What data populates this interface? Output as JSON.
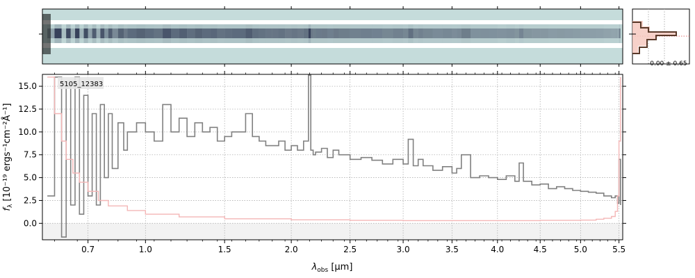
{
  "chart_data": [
    {
      "panel": "2d-spectrum",
      "type": "heatmap",
      "description_colors": {
        "background": "#c5dcdb",
        "trace": "#2b3550",
        "gap": "#ffffff"
      }
    },
    {
      "panel": "profile",
      "type": "line",
      "annotation": "-0.00 ± 0.65",
      "colors": {
        "profile": "#5a3a2a",
        "fill": "#f6c9bf"
      }
    },
    {
      "panel": "1d-spectrum",
      "type": "line",
      "id_label": "5105_12383",
      "xlabel_main": "λ",
      "xlabel_sub": "obs",
      "xlabel_unit": " [μm]",
      "ylabel": "f_λ [10⁻¹⁹ ergs⁻¹cm⁻²Å⁻¹]",
      "ylabel_text": "f",
      "ylabel_sub": "λ",
      "ylabel_unit": " [10⁻¹⁹ ergs⁻¹cm⁻²Å⁻¹]",
      "xlim": [
        0.5,
        5.55
      ],
      "ylim": [
        -1.8,
        16.3
      ],
      "xscale": "sqrt",
      "x_ticks": [
        0.7,
        1.0,
        1.5,
        2.0,
        2.5,
        3.0,
        3.5,
        4.0,
        4.5,
        5.0,
        5.5
      ],
      "x_tick_labels": [
        "0.7",
        "1.0",
        "1.5",
        "2.0",
        "2.5",
        "3.0",
        "3.5",
        "4.0",
        "4.5",
        "5.0",
        "5.5"
      ],
      "y_ticks": [
        0.0,
        2.5,
        5.0,
        7.5,
        10.0,
        12.5,
        15.0
      ],
      "y_tick_labels": [
        "0.0",
        "2.5",
        "5.0",
        "7.5",
        "10.0",
        "12.5",
        "15.0"
      ],
      "grid": true,
      "colors": {
        "flux": "#808080",
        "error": "#f4b6b6",
        "zero_band": "#f2f2f2"
      },
      "series": [
        {
          "role": "flux",
          "x": [
            0.52,
            0.55,
            0.58,
            0.6,
            0.62,
            0.64,
            0.66,
            0.68,
            0.7,
            0.72,
            0.74,
            0.76,
            0.78,
            0.8,
            0.82,
            0.85,
            0.88,
            0.9,
            0.95,
            1.0,
            1.05,
            1.1,
            1.15,
            1.2,
            1.25,
            1.3,
            1.35,
            1.4,
            1.45,
            1.5,
            1.55,
            1.6,
            1.65,
            1.7,
            1.75,
            1.8,
            1.85,
            1.9,
            1.95,
            2.0,
            2.05,
            2.1,
            2.14,
            2.16,
            2.18,
            2.2,
            2.25,
            2.3,
            2.35,
            2.4,
            2.5,
            2.6,
            2.7,
            2.8,
            2.9,
            3.0,
            3.05,
            3.1,
            3.15,
            3.2,
            3.3,
            3.4,
            3.5,
            3.55,
            3.6,
            3.7,
            3.8,
            3.9,
            4.0,
            4.1,
            4.2,
            4.25,
            4.3,
            4.4,
            4.5,
            4.6,
            4.7,
            4.8,
            4.9,
            5.0,
            5.1,
            5.2,
            5.3,
            5.4,
            5.45,
            5.48,
            5.5,
            5.52
          ],
          "y": [
            3.0,
            16.0,
            -1.5,
            15.0,
            2.0,
            16.0,
            1.0,
            14.0,
            3.0,
            12.0,
            2.0,
            13.0,
            5.0,
            12.0,
            6.0,
            11.0,
            8.0,
            10.0,
            11.0,
            10.0,
            9.0,
            13.0,
            10.0,
            11.5,
            9.5,
            11.0,
            10.0,
            10.5,
            9.0,
            9.5,
            10.0,
            10.0,
            12.0,
            9.5,
            9.0,
            8.5,
            8.5,
            9.0,
            8.0,
            8.5,
            8.0,
            9.0,
            16.2,
            8.0,
            7.5,
            7.8,
            8.2,
            7.2,
            8.0,
            7.5,
            7.0,
            7.2,
            6.9,
            6.5,
            7.0,
            6.5,
            9.2,
            6.3,
            7.0,
            6.3,
            5.8,
            6.2,
            5.5,
            6.0,
            7.5,
            5.0,
            5.2,
            5.0,
            4.8,
            5.2,
            4.6,
            6.6,
            4.6,
            4.2,
            4.3,
            3.8,
            4.0,
            3.8,
            3.6,
            3.5,
            3.4,
            3.3,
            3.0,
            2.8,
            3.0,
            2.2,
            7.0,
            2.0
          ]
        },
        {
          "role": "error",
          "x": [
            0.52,
            0.55,
            0.58,
            0.6,
            0.63,
            0.66,
            0.7,
            0.75,
            0.8,
            0.9,
            1.0,
            1.2,
            1.5,
            2.0,
            2.5,
            3.0,
            3.5,
            4.0,
            4.5,
            5.0,
            5.2,
            5.3,
            5.4,
            5.45,
            5.48,
            5.5,
            5.52
          ],
          "y": [
            16.0,
            12.0,
            9.0,
            7.0,
            5.5,
            4.5,
            3.5,
            2.5,
            1.9,
            1.4,
            1.0,
            0.7,
            0.5,
            0.38,
            0.32,
            0.3,
            0.3,
            0.3,
            0.32,
            0.35,
            0.45,
            0.55,
            0.75,
            1.3,
            3.0,
            9.0,
            16.0
          ]
        }
      ]
    }
  ]
}
